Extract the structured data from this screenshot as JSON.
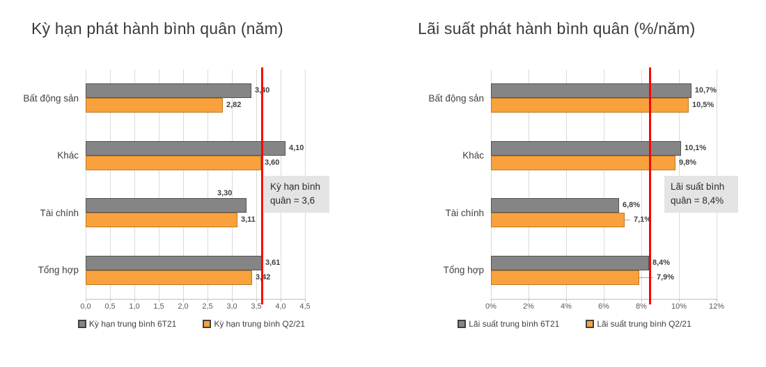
{
  "chart_data": [
    {
      "type": "bar",
      "orientation": "horizontal",
      "title": "Kỳ hạn phát hành bình quân (năm)",
      "categories": [
        "Bất động sản",
        "Khác",
        "Tài chính",
        "Tổng hợp"
      ],
      "series": [
        {
          "name": "Kỳ hạn trung bình 6T21",
          "color": "#858585",
          "border_color": "#525252",
          "values": [
            3.4,
            4.1,
            3.3,
            3.61
          ],
          "value_labels": [
            "3,40",
            "4,10",
            "3,30",
            "3,61"
          ]
        },
        {
          "name": "Kỳ hạn trung bình Q2/21",
          "color": "#F9A13C",
          "border_color": "#BC7A25",
          "values": [
            2.82,
            3.6,
            3.11,
            3.42
          ],
          "value_labels": [
            "2,82",
            "3,60",
            "3,11",
            "3,42"
          ]
        }
      ],
      "xmin": 0,
      "xmax": 4.5,
      "xticks": [
        "0,0",
        "0,5",
        "1,0",
        "1,5",
        "2,0",
        "2,5",
        "3,0",
        "3,5",
        "4,0",
        "4,5"
      ],
      "grid": "vertical",
      "legend_position": "bottom",
      "refline": {
        "value": 3.6,
        "color": "#FF0000",
        "label": "Kỳ hạn bình quân = 3,6"
      }
    },
    {
      "type": "bar",
      "orientation": "horizontal",
      "title": "Lãi suất phát hành bình quân (%/năm)",
      "categories": [
        "Bất động sản",
        "Khác",
        "Tài chính",
        "Tổng hợp"
      ],
      "series": [
        {
          "name": "Lãi suất trung bình 6T21",
          "color": "#858585",
          "border_color": "#525252",
          "values": [
            10.7,
            10.1,
            6.8,
            8.4
          ],
          "value_labels": [
            "10,7%",
            "10,1%",
            "6,8%",
            "8,4%"
          ]
        },
        {
          "name": "Lãi suất trung bình Q2/21",
          "color": "#F9A13C",
          "border_color": "#BC7A25",
          "values": [
            10.5,
            9.8,
            7.1,
            7.9
          ],
          "value_labels": [
            "10,5%",
            "9,8%",
            "7,1%",
            "7,9%"
          ]
        }
      ],
      "xmin": 0,
      "xmax": 12,
      "xticks": [
        "0%",
        "2%",
        "4%",
        "6%",
        "8%",
        "10%",
        "12%"
      ],
      "grid": "vertical",
      "legend_position": "bottom",
      "refline": {
        "value": 8.4,
        "color": "#FF0000",
        "label": "Lãi suất bình quân = 8,4%"
      }
    }
  ]
}
